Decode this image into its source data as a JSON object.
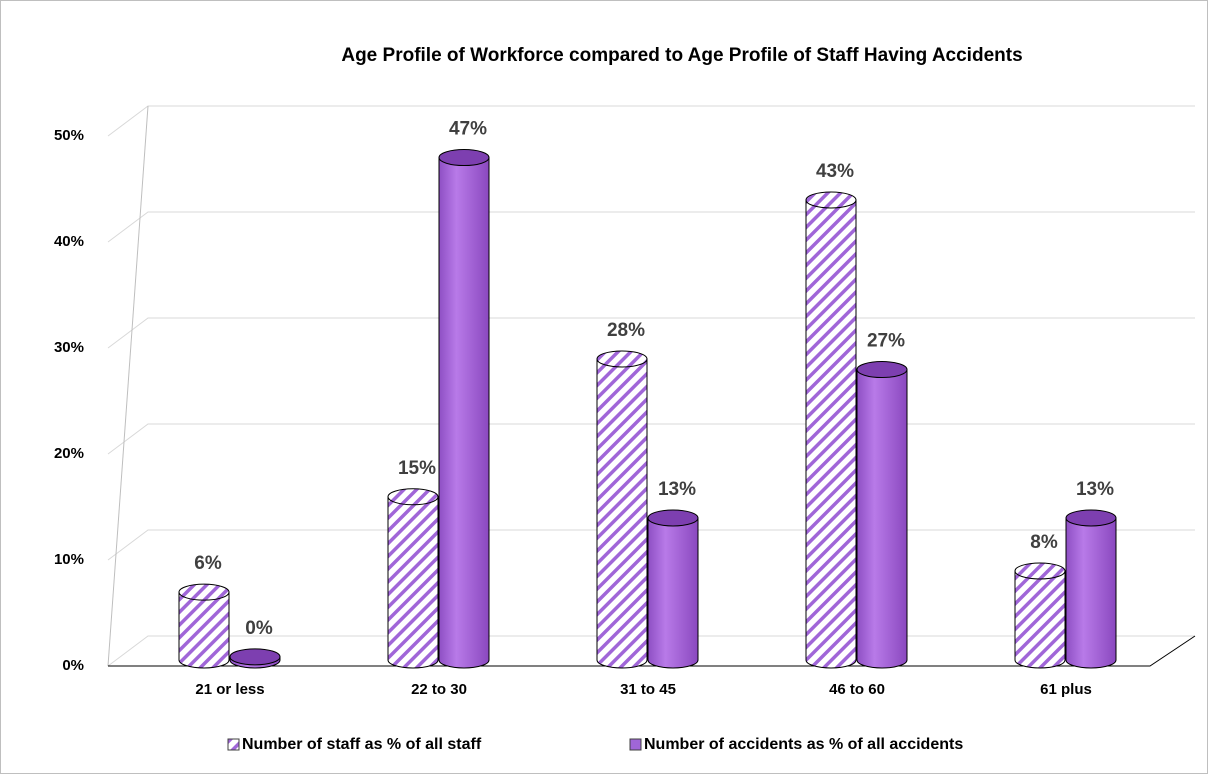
{
  "chart_data": {
    "type": "bar",
    "title": "Age Profile of Workforce compared to Age Profile of Staff Having Accidents",
    "categories": [
      "21 or less",
      "22 to 30",
      "31 to 45",
      "46 to 60",
      "61 plus"
    ],
    "series": [
      {
        "name": "Number of staff as % of all staff",
        "color": "#a066d8",
        "pattern": "hatch",
        "values": [
          6.4,
          15.4,
          28.4,
          43.4,
          8.4
        ],
        "value_labels": [
          "6%",
          "15%",
          "28%",
          "43%",
          "8%"
        ]
      },
      {
        "name": "Number of accidents as % of all accidents",
        "color": "#a066d8",
        "pattern": "solid",
        "values": [
          0.3,
          47.4,
          13.4,
          27.4,
          13.4
        ],
        "value_labels": [
          "0%",
          "47%",
          "13%",
          "27%",
          "13%"
        ]
      }
    ],
    "ylim": [
      0,
      50
    ],
    "yticks": [
      {
        "value": 0,
        "label": "0%"
      },
      {
        "value": 10,
        "label": "10%"
      },
      {
        "value": 20,
        "label": "20%"
      },
      {
        "value": 30,
        "label": "30%"
      },
      {
        "value": 40,
        "label": "40%"
      },
      {
        "value": 50,
        "label": "50%"
      }
    ],
    "grid": true,
    "legend": "bottom"
  }
}
